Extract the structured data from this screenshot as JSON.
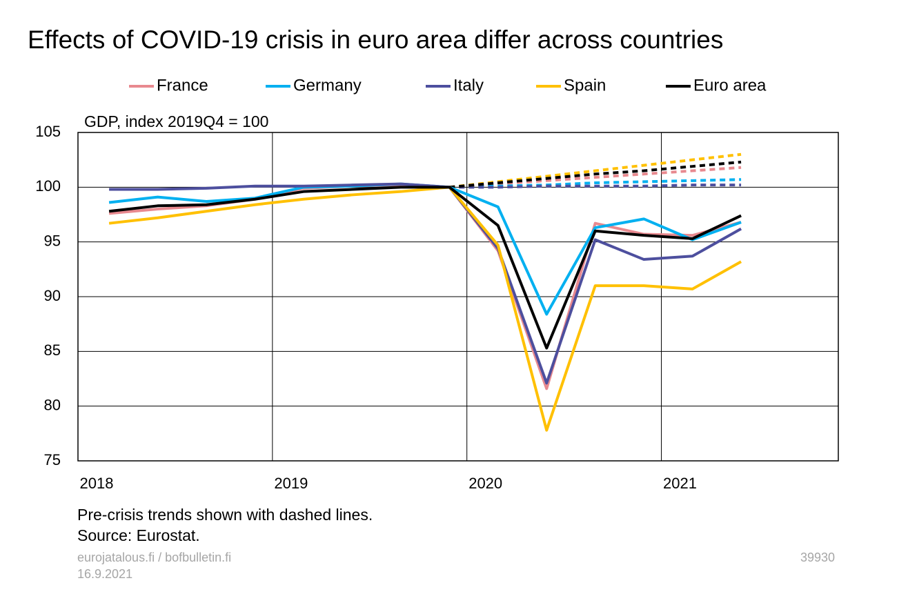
{
  "chart_data": {
    "type": "line",
    "title": "Effects of COVID-19 crisis in euro area differ across countries",
    "subtitle": "GDP, index 2019Q4 = 100",
    "notes": [
      "Pre-crisis trends shown with dashed lines.",
      "Source: Eurostat."
    ],
    "footer": {
      "site": "eurojatalous.fi / bofbulletin.fi",
      "date": "16.9.2021",
      "id": "39930"
    },
    "x": [
      2018.16,
      2018.41,
      2018.66,
      2018.91,
      2019.16,
      2019.41,
      2019.66,
      2019.91,
      2020.16,
      2020.41,
      2020.66,
      2020.91,
      2021.16,
      2021.41
    ],
    "xlim": [
      2018,
      2021.91
    ],
    "xticks": [
      2018,
      2019,
      2020,
      2021
    ],
    "ylim": [
      75,
      105
    ],
    "yticks": [
      75,
      80,
      85,
      90,
      95,
      100,
      105
    ],
    "grid": true,
    "series": [
      {
        "name": "France",
        "color": "#e8898f",
        "values": [
          97.6,
          98.0,
          98.3,
          98.9,
          99.9,
          100.1,
          100.2,
          100,
          94.2,
          81.6,
          96.7,
          95.7,
          95.6,
          96.8
        ]
      },
      {
        "name": "Germany",
        "color": "#00b0f0",
        "values": [
          98.6,
          99.1,
          98.7,
          99.0,
          100.0,
          100.1,
          100.3,
          100,
          98.2,
          88.4,
          96.3,
          97.1,
          95.2,
          96.8
        ]
      },
      {
        "name": "Italy",
        "color": "#4d4f9e",
        "values": [
          99.8,
          99.8,
          99.9,
          100.1,
          100.1,
          100.2,
          100.3,
          100,
          94.4,
          82.1,
          95.2,
          93.4,
          93.7,
          96.2
        ]
      },
      {
        "name": "Spain",
        "color": "#ffc000",
        "values": [
          96.7,
          97.2,
          97.8,
          98.4,
          98.9,
          99.3,
          99.6,
          100,
          94.7,
          77.8,
          91.0,
          91.0,
          90.7,
          93.2
        ]
      },
      {
        "name": "Euro area",
        "color": "#000000",
        "values": [
          97.8,
          98.3,
          98.4,
          98.9,
          99.6,
          99.8,
          100.0,
          100,
          96.5,
          85.3,
          96.0,
          95.6,
          95.3,
          97.4
        ]
      },
      {
        "color": "#e8898f",
        "dashed": true,
        "values": [
          null,
          null,
          null,
          null,
          null,
          null,
          null,
          100,
          100.3,
          100.6,
          100.9,
          101.2,
          101.5,
          101.8
        ]
      },
      {
        "color": "#00b0f0",
        "dashed": true,
        "values": [
          null,
          null,
          null,
          null,
          null,
          null,
          null,
          100,
          100.1,
          100.2,
          100.4,
          100.5,
          100.6,
          100.7
        ]
      },
      {
        "color": "#4d4f9e",
        "dashed": true,
        "values": [
          null,
          null,
          null,
          null,
          null,
          null,
          null,
          100,
          100,
          100.1,
          100.1,
          100.1,
          100.2,
          100.2
        ]
      },
      {
        "color": "#ffc000",
        "dashed": true,
        "values": [
          null,
          null,
          null,
          null,
          null,
          null,
          null,
          100,
          100.5,
          101.0,
          101.5,
          102.0,
          102.5,
          103.0
        ]
      },
      {
        "color": "#000000",
        "dashed": true,
        "values": [
          null,
          null,
          null,
          null,
          null,
          null,
          null,
          100,
          100.4,
          100.8,
          101.2,
          101.5,
          101.9,
          102.3
        ]
      }
    ]
  }
}
